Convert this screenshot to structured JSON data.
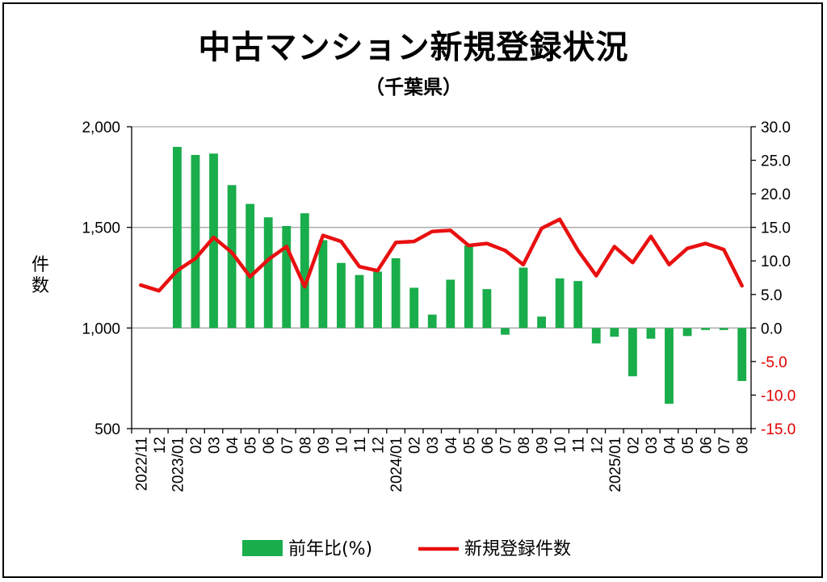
{
  "header": {
    "title": "中古マンション新規登録状況",
    "subtitle": "（千葉県）"
  },
  "chart_data": {
    "type": "bar+line",
    "x": [
      "2022/11",
      "12",
      "2023/01",
      "02",
      "03",
      "04",
      "05",
      "06",
      "07",
      "08",
      "09",
      "10",
      "11",
      "12",
      "2024/01",
      "02",
      "03",
      "04",
      "05",
      "06",
      "07",
      "08",
      "09",
      "10",
      "11",
      "12",
      "2025/01",
      "02",
      "03",
      "04",
      "05",
      "06",
      "07",
      "08"
    ],
    "left_axis": {
      "label": "件数",
      "ylim": [
        500,
        2000
      ],
      "ticks": [
        "2,000",
        "1,500",
        "1,000",
        "500"
      ],
      "tick_values": [
        2000,
        1500,
        1000,
        500
      ]
    },
    "right_axis": {
      "ylim": [
        -15,
        30
      ],
      "ticks": [
        "30.0",
        "25.0",
        "20.0",
        "15.0",
        "10.0",
        "5.0",
        "0.0",
        "-5.0",
        "-10.0",
        "-15.0"
      ],
      "tick_values": [
        30,
        25,
        20,
        15,
        10,
        5,
        0,
        -5,
        -10,
        -15
      ]
    },
    "series": [
      {
        "name": "前年比(%)",
        "type": "bar",
        "axis": "right",
        "color": "#1aad4b",
        "values": [
          null,
          null,
          27.0,
          25.8,
          26.0,
          21.3,
          18.5,
          16.5,
          15.2,
          17.1,
          13.1,
          9.7,
          7.9,
          8.4,
          10.4,
          6.0,
          2.0,
          7.2,
          12.3,
          5.8,
          -1.0,
          9.0,
          1.7,
          7.4,
          7.0,
          -2.3,
          -1.3,
          -7.2,
          -1.6,
          -11.3,
          -1.2,
          -0.3,
          -0.3,
          -7.9
        ]
      },
      {
        "name": "新規登録件数",
        "type": "line",
        "axis": "left",
        "color": "#e81010",
        "values": [
          1213,
          1185,
          1285,
          1345,
          1450,
          1375,
          1255,
          1340,
          1405,
          1205,
          1460,
          1430,
          1305,
          1285,
          1425,
          1430,
          1480,
          1485,
          1410,
          1420,
          1385,
          1315,
          1495,
          1540,
          1385,
          1260,
          1405,
          1325,
          1455,
          1315,
          1395,
          1420,
          1390,
          1210
        ]
      }
    ],
    "grid": "horizontal",
    "legend": "bottom"
  },
  "legend": {
    "bar_label": "前年比(%)",
    "line_label": "新規登録件数"
  },
  "colors": {
    "bar": "#1aad4b",
    "line": "#e81010",
    "negative_tick": "#e00000",
    "grid": "#a6a6a6"
  }
}
